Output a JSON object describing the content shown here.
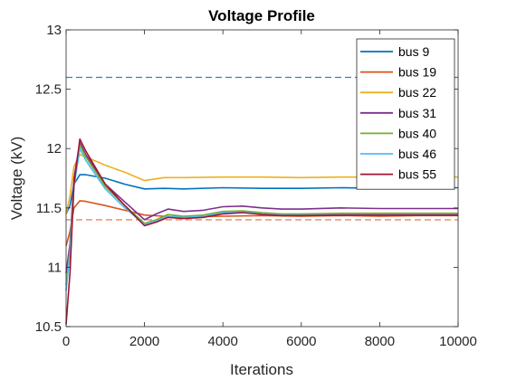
{
  "chart_data": {
    "type": "line",
    "title": "Voltage Profile",
    "xlabel": "Iterations",
    "ylabel": "Voltage (kV)",
    "xlim": [
      0,
      10000
    ],
    "ylim": [
      10.5,
      13
    ],
    "xticks": [
      0,
      2000,
      4000,
      6000,
      8000,
      10000
    ],
    "xtick_labels": [
      "0",
      "2000",
      "4000",
      "6000",
      "8000",
      "10000"
    ],
    "yticks": [
      10.5,
      11,
      11.5,
      12,
      12.5,
      13
    ],
    "ytick_labels": [
      "10.5",
      "11",
      "11.5",
      "12",
      "12.5",
      "13"
    ],
    "grid": false,
    "legend_position": "top-right",
    "reference_lines": [
      {
        "y": 12.6,
        "color": "#0072BD",
        "style": "dashed"
      },
      {
        "y": 11.4,
        "color": "#D95319",
        "style": "dashed"
      }
    ],
    "series": [
      {
        "name": "bus 9",
        "color": "#0072BD",
        "x": [
          0,
          100,
          200,
          350,
          500,
          1000,
          1500,
          2000,
          2500,
          3000,
          4000,
          5000,
          6000,
          7000,
          8000,
          9000,
          10000
        ],
        "y": [
          11.45,
          11.52,
          11.7,
          11.78,
          11.78,
          11.75,
          11.7,
          11.66,
          11.665,
          11.66,
          11.67,
          11.665,
          11.665,
          11.67,
          11.665,
          11.67,
          11.67
        ]
      },
      {
        "name": "bus 19",
        "color": "#D95319",
        "x": [
          0,
          100,
          200,
          350,
          500,
          1000,
          1500,
          2000,
          2500,
          3000,
          4000,
          5000,
          6000,
          7000,
          8000,
          9000,
          10000
        ],
        "y": [
          11.18,
          11.3,
          11.5,
          11.56,
          11.555,
          11.52,
          11.48,
          11.44,
          11.43,
          11.425,
          11.43,
          11.435,
          11.43,
          11.435,
          11.43,
          11.435,
          11.435
        ]
      },
      {
        "name": "bus 22",
        "color": "#EDB120",
        "x": [
          0,
          100,
          200,
          350,
          500,
          1000,
          1500,
          2000,
          2500,
          3000,
          4000,
          5000,
          6000,
          7000,
          8000,
          9000,
          10000
        ],
        "y": [
          11.45,
          11.6,
          11.85,
          11.95,
          11.93,
          11.86,
          11.8,
          11.73,
          11.755,
          11.755,
          11.76,
          11.76,
          11.755,
          11.76,
          11.76,
          11.76,
          11.76
        ]
      },
      {
        "name": "bus 31",
        "color": "#7E2F8E",
        "x": [
          0,
          100,
          200,
          350,
          500,
          1000,
          1500,
          2000,
          2300,
          2600,
          3000,
          3500,
          4000,
          4500,
          5000,
          5500,
          6000,
          7000,
          8000,
          9000,
          10000
        ],
        "y": [
          10.95,
          11.2,
          11.75,
          12.05,
          11.95,
          11.7,
          11.55,
          11.4,
          11.45,
          11.49,
          11.47,
          11.48,
          11.51,
          11.515,
          11.5,
          11.49,
          11.49,
          11.5,
          11.495,
          11.495,
          11.495
        ]
      },
      {
        "name": "bus 40",
        "color": "#77AC30",
        "x": [
          0,
          100,
          200,
          350,
          500,
          1000,
          1500,
          2000,
          2300,
          2600,
          3000,
          3500,
          4000,
          4500,
          5000,
          5500,
          6000,
          7000,
          8000,
          9000,
          10000
        ],
        "y": [
          10.85,
          11.15,
          11.7,
          12.03,
          11.93,
          11.68,
          11.52,
          11.37,
          11.4,
          11.445,
          11.43,
          11.44,
          11.47,
          11.475,
          11.46,
          11.45,
          11.45,
          11.455,
          11.455,
          11.455,
          11.455
        ]
      },
      {
        "name": "bus 46",
        "color": "#4DBEEE",
        "x": [
          0,
          100,
          200,
          350,
          500,
          1000,
          1500,
          2000,
          2300,
          2600,
          3000,
          3500,
          4000,
          4500,
          5000,
          5500,
          6000,
          7000,
          8000,
          9000,
          10000
        ],
        "y": [
          10.8,
          11.12,
          11.68,
          12.0,
          11.9,
          11.66,
          11.5,
          11.36,
          11.39,
          11.43,
          11.42,
          11.43,
          11.46,
          11.465,
          11.45,
          11.44,
          11.44,
          11.445,
          11.445,
          11.445,
          11.445
        ]
      },
      {
        "name": "bus 55",
        "color": "#A2142F",
        "x": [
          0,
          100,
          200,
          350,
          500,
          1000,
          1500,
          2000,
          2300,
          2600,
          3000,
          3500,
          4000,
          4500,
          5000,
          5500,
          6000,
          7000,
          8000,
          9000,
          10000
        ],
        "y": [
          10.52,
          10.95,
          11.7,
          12.08,
          11.98,
          11.7,
          11.52,
          11.35,
          11.38,
          11.42,
          11.41,
          11.42,
          11.45,
          11.46,
          11.445,
          11.435,
          11.435,
          11.44,
          11.44,
          11.44,
          11.44
        ]
      }
    ]
  }
}
